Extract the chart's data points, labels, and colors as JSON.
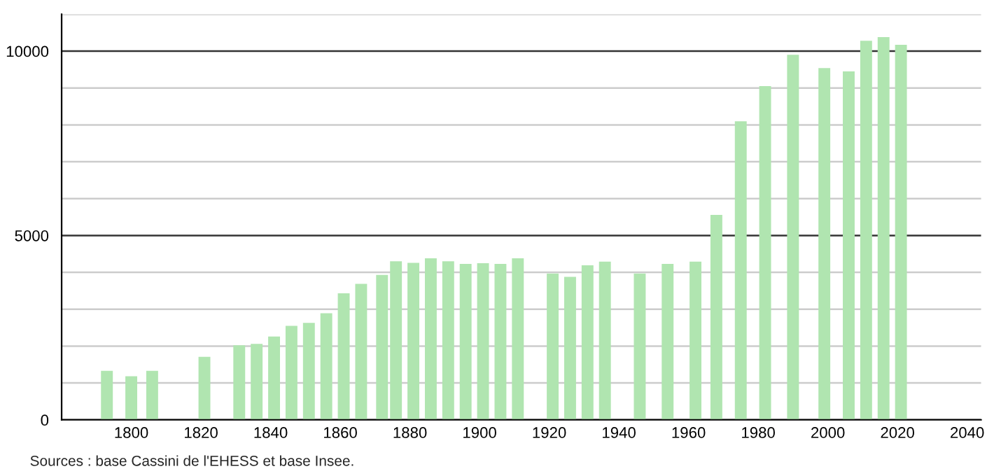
{
  "chart_data": {
    "type": "bar",
    "x": [
      1793,
      1800,
      1806,
      1821,
      1831,
      1836,
      1841,
      1846,
      1851,
      1856,
      1861,
      1866,
      1872,
      1876,
      1881,
      1886,
      1891,
      1896,
      1901,
      1906,
      1911,
      1921,
      1926,
      1931,
      1936,
      1946,
      1954,
      1962,
      1968,
      1975,
      1982,
      1990,
      1999,
      2006,
      2011,
      2016,
      2021
    ],
    "values": [
      1330,
      1180,
      1330,
      1710,
      2020,
      2060,
      2260,
      2550,
      2630,
      2890,
      3430,
      3690,
      3930,
      4300,
      4260,
      4380,
      4300,
      4230,
      4250,
      4230,
      4380,
      3970,
      3880,
      4190,
      4290,
      3970,
      4230,
      4290,
      5560,
      8100,
      9050,
      9900,
      9540,
      9450,
      10280,
      10380,
      10170
    ],
    "color": "#b0e5b0",
    "xlim": [
      1780,
      2044
    ],
    "xticks": [
      1800,
      1820,
      1840,
      1860,
      1880,
      1900,
      1920,
      1940,
      1960,
      1980,
      2000,
      2020,
      2040
    ],
    "ylim": [
      0,
      11000
    ],
    "yticks": [
      0,
      {
        "value": 1000,
        "label": null
      },
      {
        "value": 2000,
        "label": null
      },
      {
        "value": 3000,
        "label": null
      },
      {
        "value": 4000,
        "label": null
      },
      5000,
      {
        "value": 6000,
        "label": null
      },
      {
        "value": 7000,
        "label": null
      },
      {
        "value": 8000,
        "label": null
      },
      {
        "value": 9000,
        "label": null
      },
      10000,
      {
        "value": 11000,
        "label": null
      }
    ],
    "grid": "y",
    "annotations": [
      "Sources : base Cassini de l'EHESS et base Insee."
    ]
  }
}
